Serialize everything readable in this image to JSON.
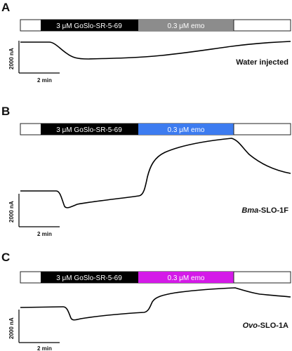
{
  "figure": {
    "panels": [
      {
        "letter": "A",
        "bar": {
          "segments": [
            {
              "label": "",
              "color": "#ffffff"
            },
            {
              "label": "3 μM GoSlo-SR-5-69",
              "color": "#000000"
            },
            {
              "label": "0.3 μM emo",
              "color": "#8c8c8c"
            },
            {
              "label": "",
              "color": "#ffffff"
            }
          ]
        },
        "scale_y": "2000 nA",
        "scale_x": "2 min",
        "label_plain": "Water injected",
        "label_italic": "",
        "label_rest": ""
      },
      {
        "letter": "B",
        "bar": {
          "segments": [
            {
              "label": "",
              "color": "#ffffff"
            },
            {
              "label": "3 μM GoSlo-SR-5-69",
              "color": "#000000"
            },
            {
              "label": "0.3 μM emo",
              "color": "#3d7cf0"
            },
            {
              "label": "",
              "color": "#ffffff"
            }
          ]
        },
        "scale_y": "2000 nA",
        "scale_x": "2 min",
        "label_plain": "",
        "label_italic": "Bma",
        "label_rest": "-SLO-1F"
      },
      {
        "letter": "C",
        "bar": {
          "segments": [
            {
              "label": "",
              "color": "#ffffff"
            },
            {
              "label": "3 μM GoSlo-SR-5-69",
              "color": "#000000"
            },
            {
              "label": "0.3 μM emo",
              "color": "#d41ae8"
            },
            {
              "label": "",
              "color": "#ffffff"
            }
          ]
        },
        "scale_y": "2000 nA",
        "scale_x": "2 min",
        "label_plain": "",
        "label_italic": "Ovo",
        "label_rest": "-SLO-1A"
      }
    ]
  }
}
